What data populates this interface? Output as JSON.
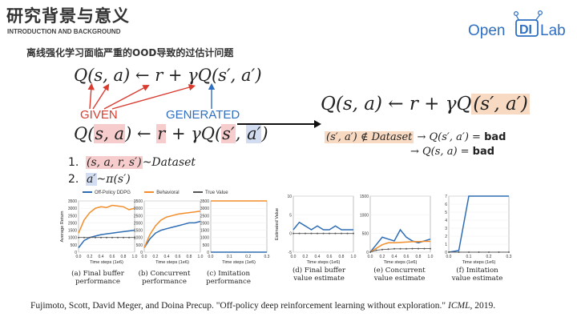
{
  "slide": {
    "title": "研究背景与意义",
    "subtitle": "INTRODUCTION AND BACKGROUND",
    "heading": "离线强化学习面临严重的OOD导致的过估计问题"
  },
  "logo": {
    "text_open": "Open",
    "text_di": "DI",
    "text_lab": "Lab"
  },
  "equations": {
    "eq1": "Q(s, a) ← r + γQ(s′, a′)",
    "given": "GIVEN",
    "generated": "GENERATED",
    "eq2_q": "Q(",
    "eq2_sa": "s, a",
    "eq2_mid1": ") ← ",
    "eq2_r": "r",
    "eq2_mid2": " + γQ(",
    "eq2_s2": "s′",
    "eq2_comma": ", ",
    "eq2_a2": "a′",
    "eq2_end": ")",
    "big_prefix": "Q(s, a) ← r + γQ",
    "big_hl": "(s′, a′)",
    "bad1_cond": "(s′, a′) ∉ Dataset",
    "bad1_rest": " → Q(s′, a′) = ",
    "bad2_rest": "→ Q(s, a)    = ",
    "bad_word": "bad"
  },
  "list": [
    {
      "num": "1.",
      "text": "(s, a, r, s′)",
      "suffix": "~Dataset"
    },
    {
      "num": "2.",
      "text": "a′",
      "suffix": "~π(s′)"
    }
  ],
  "legend": {
    "items": [
      "Off-Policy DDPG",
      "Behavioral",
      "True Value"
    ],
    "colors": [
      "#2e6db4",
      "#f28e2b",
      "#555555"
    ]
  },
  "chart_data": [
    {
      "type": "line",
      "title": "",
      "ylabel": "Average Return",
      "xlabel": "Time steps (1e6)",
      "x": [
        0.0,
        0.1,
        0.2,
        0.3,
        0.4,
        0.5,
        0.6,
        0.7,
        0.8,
        0.9,
        1.0
      ],
      "ylim": [
        0,
        3500
      ],
      "yticks": [
        0,
        500,
        1000,
        1500,
        2000,
        2500,
        3000,
        3500
      ],
      "xticks": [
        "0.0",
        "0.2",
        "0.4",
        "0.6",
        "0.8",
        "1.0"
      ],
      "series": [
        {
          "name": "Off-Policy DDPG",
          "values": [
            300,
            800,
            1000,
            1100,
            1200,
            1250,
            1300,
            1350,
            1400,
            1450,
            1500
          ]
        },
        {
          "name": "Behavioral",
          "values": [
            1300,
            2200,
            2700,
            3000,
            3100,
            3050,
            3200,
            3150,
            3100,
            2900,
            3000
          ]
        },
        {
          "name": "True Value",
          "values": [
            1000,
            1000,
            1000,
            1000,
            1000,
            1000,
            1000,
            1000,
            1000,
            1000,
            1000
          ]
        }
      ],
      "caption": [
        "(a) Final buffer",
        "performance"
      ]
    },
    {
      "type": "line",
      "title": "",
      "ylabel": "",
      "xlabel": "Time steps (1e6)",
      "x": [
        0.0,
        0.1,
        0.2,
        0.3,
        0.4,
        0.5,
        0.6,
        0.7,
        0.8,
        0.9,
        1.0
      ],
      "ylim": [
        0,
        3500
      ],
      "yticks": [
        0,
        500,
        1000,
        1500,
        2000,
        2500,
        3000,
        3500
      ],
      "xticks": [
        "0.0",
        "0.2",
        "0.4",
        "0.6",
        "0.8",
        "1.0"
      ],
      "series": [
        {
          "name": "Off-Policy DDPG",
          "values": [
            300,
            900,
            1300,
            1500,
            1600,
            1700,
            1800,
            1900,
            2000,
            2000,
            2100
          ]
        },
        {
          "name": "Behavioral",
          "values": [
            300,
            1200,
            1800,
            2200,
            2400,
            2500,
            2600,
            2650,
            2700,
            2750,
            2800
          ]
        }
      ],
      "caption": [
        "(b) Concurrent",
        "performance"
      ]
    },
    {
      "type": "line",
      "title": "",
      "ylabel": "",
      "xlabel": "Time steps (1e6)",
      "x": [
        0.0,
        0.1,
        0.2,
        0.3
      ],
      "ylim": [
        0,
        3500
      ],
      "yticks": [
        0,
        500,
        1000,
        1500,
        2000,
        2500,
        3000,
        3500
      ],
      "xticks": [
        "0.0",
        "0.1",
        "0.2",
        "0.3"
      ],
      "series": [
        {
          "name": "Behavioral",
          "values": [
            3500,
            3500,
            3500,
            3500
          ]
        },
        {
          "name": "Off-Policy DDPG",
          "values": [
            0,
            0,
            0,
            0
          ]
        }
      ],
      "caption": [
        "(c) Imitation",
        "performance"
      ]
    },
    {
      "type": "line",
      "title": "",
      "ylabel": "Estimated Value",
      "xlabel": "Time steps (1e6)",
      "x": [
        0.0,
        0.1,
        0.2,
        0.3,
        0.4,
        0.5,
        0.6,
        0.7,
        0.8,
        0.9,
        1.0
      ],
      "ylim": [
        -5,
        10
      ],
      "yticks": [
        -5,
        0,
        5,
        10
      ],
      "xticks": [
        "0.0",
        "0.2",
        "0.4",
        "0.6",
        "0.8",
        "1.0"
      ],
      "series": [
        {
          "name": "Off-Policy DDPG",
          "values": [
            1,
            3,
            2,
            1,
            2,
            1,
            1,
            2,
            1,
            1,
            1
          ]
        },
        {
          "name": "True Value",
          "values": [
            0,
            0,
            0,
            0,
            0,
            0,
            0,
            0,
            0,
            0,
            0
          ]
        }
      ],
      "caption": [
        "(d) Final buffer",
        "value estimate"
      ]
    },
    {
      "type": "line",
      "title": "",
      "ylabel": "",
      "xlabel": "Time steps (1e6)",
      "x": [
        0.0,
        0.1,
        0.2,
        0.3,
        0.4,
        0.5,
        0.6,
        0.7,
        0.8,
        0.9,
        1.0
      ],
      "ylim": [
        0,
        1500
      ],
      "yticks": [
        0,
        500,
        1000,
        1500
      ],
      "xticks": [
        "0.0",
        "0.2",
        "0.4",
        "0.6",
        "0.8",
        "1.0"
      ],
      "series": [
        {
          "name": "Off-Policy DDPG",
          "values": [
            0,
            200,
            400,
            350,
            300,
            600,
            400,
            300,
            250,
            300,
            350
          ]
        },
        {
          "name": "Behavioral",
          "values": [
            0,
            100,
            200,
            250,
            250,
            260,
            270,
            280,
            280,
            290,
            290
          ]
        },
        {
          "name": "True Value",
          "values": [
            0,
            50,
            70,
            80,
            90,
            90,
            90,
            95,
            95,
            95,
            95
          ]
        }
      ],
      "caption": [
        "(e) Concurrent",
        "value estimate"
      ]
    },
    {
      "type": "line",
      "title": "",
      "ylabel": "",
      "xlabel": "Time steps (1e6)",
      "x": [
        0.0,
        0.05,
        0.1,
        0.15,
        0.2,
        0.25,
        0.3
      ],
      "ylim": [
        0,
        7
      ],
      "yticks": [
        0,
        1,
        2,
        3,
        4,
        5,
        6,
        7
      ],
      "xticks": [
        "0.0",
        "0.1",
        "0.2",
        "0.3"
      ],
      "series": [
        {
          "name": "Off-Policy DDPG",
          "values": [
            0,
            0.2,
            7,
            7,
            7,
            7,
            7
          ]
        },
        {
          "name": "True Value",
          "values": [
            0,
            0,
            0,
            0,
            0,
            0,
            0
          ]
        }
      ],
      "caption": [
        "(f) Imitation",
        "value estimate"
      ]
    }
  ],
  "citation": {
    "authors": "Fujimoto, Scott, David Meger, and Doina Precup. \"Off-policy deep reinforcement learning without exploration.\" ",
    "venue": "ICML",
    "year": ", 2019."
  }
}
